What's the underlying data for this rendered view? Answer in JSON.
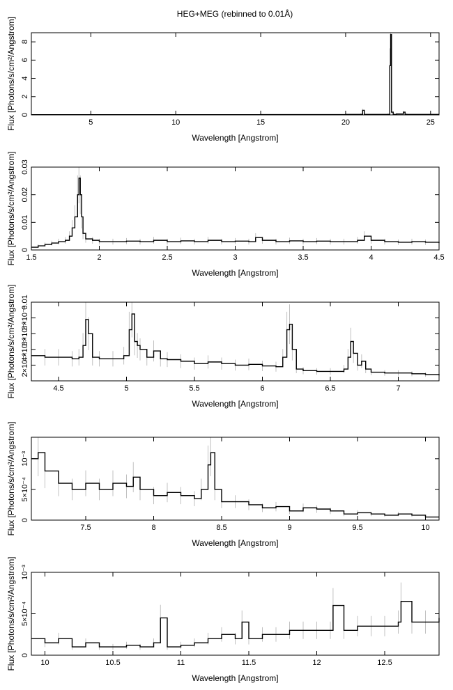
{
  "title": "HEG+MEG (rebinned to 0.01Å)",
  "colors": {
    "line": "#000000",
    "error": "#c0c0c0",
    "frame": "#000000"
  },
  "chart_data": [
    {
      "type": "line",
      "xlabel": "Wavelength [Angstrom]",
      "ylabel": "Flux [Photons/s/cm²/Angstrom]",
      "xlim": [
        1.5,
        25.5
      ],
      "ylim": [
        0,
        9
      ],
      "xticks": [
        5,
        10,
        15,
        20,
        25
      ],
      "xtick_labels": [
        "5",
        "10",
        "15",
        "20",
        "25"
      ],
      "yticks": [
        0,
        2,
        4,
        6,
        8
      ],
      "ytick_labels": [
        "0",
        "2",
        "4",
        "6",
        "8"
      ],
      "x": [
        1.5,
        5,
        10,
        15,
        20,
        20.9,
        21.0,
        21.1,
        22.5,
        22.6,
        22.65,
        22.7,
        22.8,
        23.0,
        23.4,
        23.5,
        23.6,
        25.5
      ],
      "y": [
        0.02,
        0.02,
        0.02,
        0.03,
        0.05,
        0.05,
        0.5,
        0.05,
        0.05,
        5.4,
        8.8,
        0.3,
        0.05,
        0.1,
        0.3,
        0.05,
        0.05,
        0.05
      ]
    },
    {
      "type": "line",
      "xlabel": "Wavelength [Angstrom]",
      "ylabel": "Flux [Photons/s/cm²/Angstrom]",
      "xlim": [
        1.5,
        4.5
      ],
      "ylim": [
        0,
        0.03
      ],
      "xticks": [
        1.5,
        2,
        2.5,
        3,
        3.5,
        4,
        4.5
      ],
      "xtick_labels": [
        "1.5",
        "2",
        "2.5",
        "3",
        "3.5",
        "4",
        "4.5"
      ],
      "yticks": [
        0,
        0.01,
        0.02,
        0.03
      ],
      "ytick_labels": [
        "0",
        "0.01",
        "0.02",
        "0.03"
      ],
      "x": [
        1.5,
        1.55,
        1.6,
        1.65,
        1.7,
        1.75,
        1.78,
        1.8,
        1.82,
        1.84,
        1.85,
        1.86,
        1.87,
        1.88,
        1.9,
        1.95,
        2.0,
        2.1,
        2.2,
        2.3,
        2.4,
        2.5,
        2.6,
        2.7,
        2.8,
        2.9,
        3.0,
        3.1,
        3.15,
        3.2,
        3.3,
        3.4,
        3.5,
        3.6,
        3.7,
        3.8,
        3.9,
        3.95,
        4.0,
        4.1,
        4.2,
        4.3,
        4.4,
        4.5
      ],
      "y": [
        0.001,
        0.0015,
        0.002,
        0.0025,
        0.003,
        0.0035,
        0.005,
        0.008,
        0.012,
        0.02,
        0.026,
        0.02,
        0.012,
        0.006,
        0.004,
        0.0035,
        0.003,
        0.003,
        0.0032,
        0.003,
        0.0035,
        0.003,
        0.0033,
        0.003,
        0.0035,
        0.003,
        0.0032,
        0.003,
        0.0045,
        0.0035,
        0.003,
        0.0033,
        0.003,
        0.0032,
        0.003,
        0.003,
        0.0035,
        0.005,
        0.0035,
        0.003,
        0.0028,
        0.003,
        0.0028,
        0.0025
      ]
    },
    {
      "type": "line",
      "xlabel": "Wavelength [Angstrom]",
      "ylabel": "Flux [Photons/s/cm²/Angstrom]",
      "xlim": [
        4.3,
        7.3
      ],
      "ylim": [
        0,
        0.01
      ],
      "xticks": [
        4.5,
        5,
        5.5,
        6,
        6.5,
        7
      ],
      "xtick_labels": [
        "4.5",
        "5",
        "5.5",
        "6",
        "6.5",
        "7"
      ],
      "yticks": [
        0.002,
        0.004,
        0.006,
        0.008,
        0.01
      ],
      "ytick_labels": [
        "2×10⁻³",
        "4×10⁻³",
        "6×10⁻³",
        "8×10⁻³",
        "0.01"
      ],
      "x": [
        4.3,
        4.4,
        4.5,
        4.6,
        4.65,
        4.68,
        4.7,
        4.72,
        4.75,
        4.8,
        4.9,
        4.98,
        5.02,
        5.04,
        5.06,
        5.08,
        5.1,
        5.15,
        5.2,
        5.25,
        5.3,
        5.4,
        5.5,
        5.6,
        5.7,
        5.8,
        5.9,
        6.0,
        6.1,
        6.15,
        6.18,
        6.2,
        6.22,
        6.25,
        6.3,
        6.4,
        6.5,
        6.6,
        6.63,
        6.65,
        6.67,
        6.7,
        6.73,
        6.76,
        6.8,
        6.9,
        7.0,
        7.1,
        7.2,
        7.3
      ],
      "y": [
        0.0032,
        0.003,
        0.003,
        0.0028,
        0.003,
        0.0045,
        0.0078,
        0.006,
        0.003,
        0.0028,
        0.0028,
        0.0032,
        0.0065,
        0.0085,
        0.005,
        0.0045,
        0.004,
        0.003,
        0.0038,
        0.0028,
        0.0027,
        0.0025,
        0.0022,
        0.0024,
        0.0022,
        0.002,
        0.0021,
        0.0019,
        0.0018,
        0.003,
        0.0065,
        0.0072,
        0.004,
        0.0015,
        0.0013,
        0.0012,
        0.0012,
        0.0015,
        0.003,
        0.005,
        0.0035,
        0.002,
        0.0025,
        0.0015,
        0.0011,
        0.001,
        0.001,
        0.0009,
        0.0008,
        0.0007
      ]
    },
    {
      "type": "line",
      "xlabel": "Wavelength [Angstrom]",
      "ylabel": "Flux [Photons/s/cm²/Angstrom]",
      "xlim": [
        7.1,
        10.1
      ],
      "ylim": [
        0,
        0.00135
      ],
      "xticks": [
        7.5,
        8,
        8.5,
        9,
        9.5,
        10
      ],
      "xtick_labels": [
        "7.5",
        "8",
        "8.5",
        "9",
        "9.5",
        "10"
      ],
      "yticks": [
        0,
        0.0005,
        0.001
      ],
      "ytick_labels": [
        "0",
        "5×10⁻⁴",
        "10⁻³"
      ],
      "x": [
        7.1,
        7.15,
        7.2,
        7.3,
        7.4,
        7.5,
        7.6,
        7.7,
        7.8,
        7.85,
        7.9,
        8.0,
        8.1,
        8.2,
        8.3,
        8.35,
        8.4,
        8.42,
        8.45,
        8.5,
        8.6,
        8.7,
        8.8,
        8.9,
        9.0,
        9.1,
        9.2,
        9.3,
        9.4,
        9.5,
        9.6,
        9.7,
        9.8,
        9.9,
        10.0,
        10.1
      ],
      "y": [
        0.001,
        0.0011,
        0.0008,
        0.0006,
        0.0005,
        0.0006,
        0.0005,
        0.0006,
        0.00055,
        0.0007,
        0.0005,
        0.0004,
        0.00045,
        0.0004,
        0.00035,
        0.0005,
        0.0009,
        0.0011,
        0.0005,
        0.0003,
        0.0003,
        0.00025,
        0.0002,
        0.00022,
        0.00015,
        0.0002,
        0.00018,
        0.00015,
        0.0001,
        0.00012,
        0.0001,
        8e-05,
        0.0001,
        8e-05,
        5e-05,
        5e-05
      ]
    },
    {
      "type": "line",
      "xlabel": "Wavelength [Angstrom]",
      "ylabel": "Flux [Photons/s/cm²/Angstrom]",
      "xlim": [
        9.9,
        12.9
      ],
      "ylim": [
        0,
        0.001
      ],
      "xticks": [
        10,
        10.5,
        11,
        11.5,
        12,
        12.5
      ],
      "xtick_labels": [
        "10",
        "10.5",
        "11",
        "11.5",
        "12",
        "12.5"
      ],
      "yticks": [
        0,
        0.0005,
        0.001
      ],
      "ytick_labels": [
        "0",
        "5×10⁻⁴",
        "10⁻³"
      ],
      "x": [
        9.9,
        10.0,
        10.1,
        10.2,
        10.3,
        10.4,
        10.5,
        10.6,
        10.7,
        10.8,
        10.85,
        10.9,
        11.0,
        11.1,
        11.2,
        11.3,
        11.4,
        11.45,
        11.5,
        11.6,
        11.7,
        11.8,
        11.9,
        12.0,
        12.1,
        12.12,
        12.2,
        12.3,
        12.4,
        12.5,
        12.6,
        12.62,
        12.7,
        12.8,
        12.9
      ],
      "y": [
        0.0002,
        0.00015,
        0.0002,
        0.0001,
        0.00015,
        0.0001,
        0.0001,
        0.00012,
        0.0001,
        0.00015,
        0.00045,
        0.0001,
        0.00012,
        0.00015,
        0.0002,
        0.00025,
        0.0002,
        0.0004,
        0.0002,
        0.00025,
        0.00025,
        0.0003,
        0.0003,
        0.0003,
        0.0003,
        0.0006,
        0.0003,
        0.00035,
        0.00035,
        0.00035,
        0.0004,
        0.00065,
        0.0004,
        0.0004,
        0.00045
      ]
    }
  ]
}
